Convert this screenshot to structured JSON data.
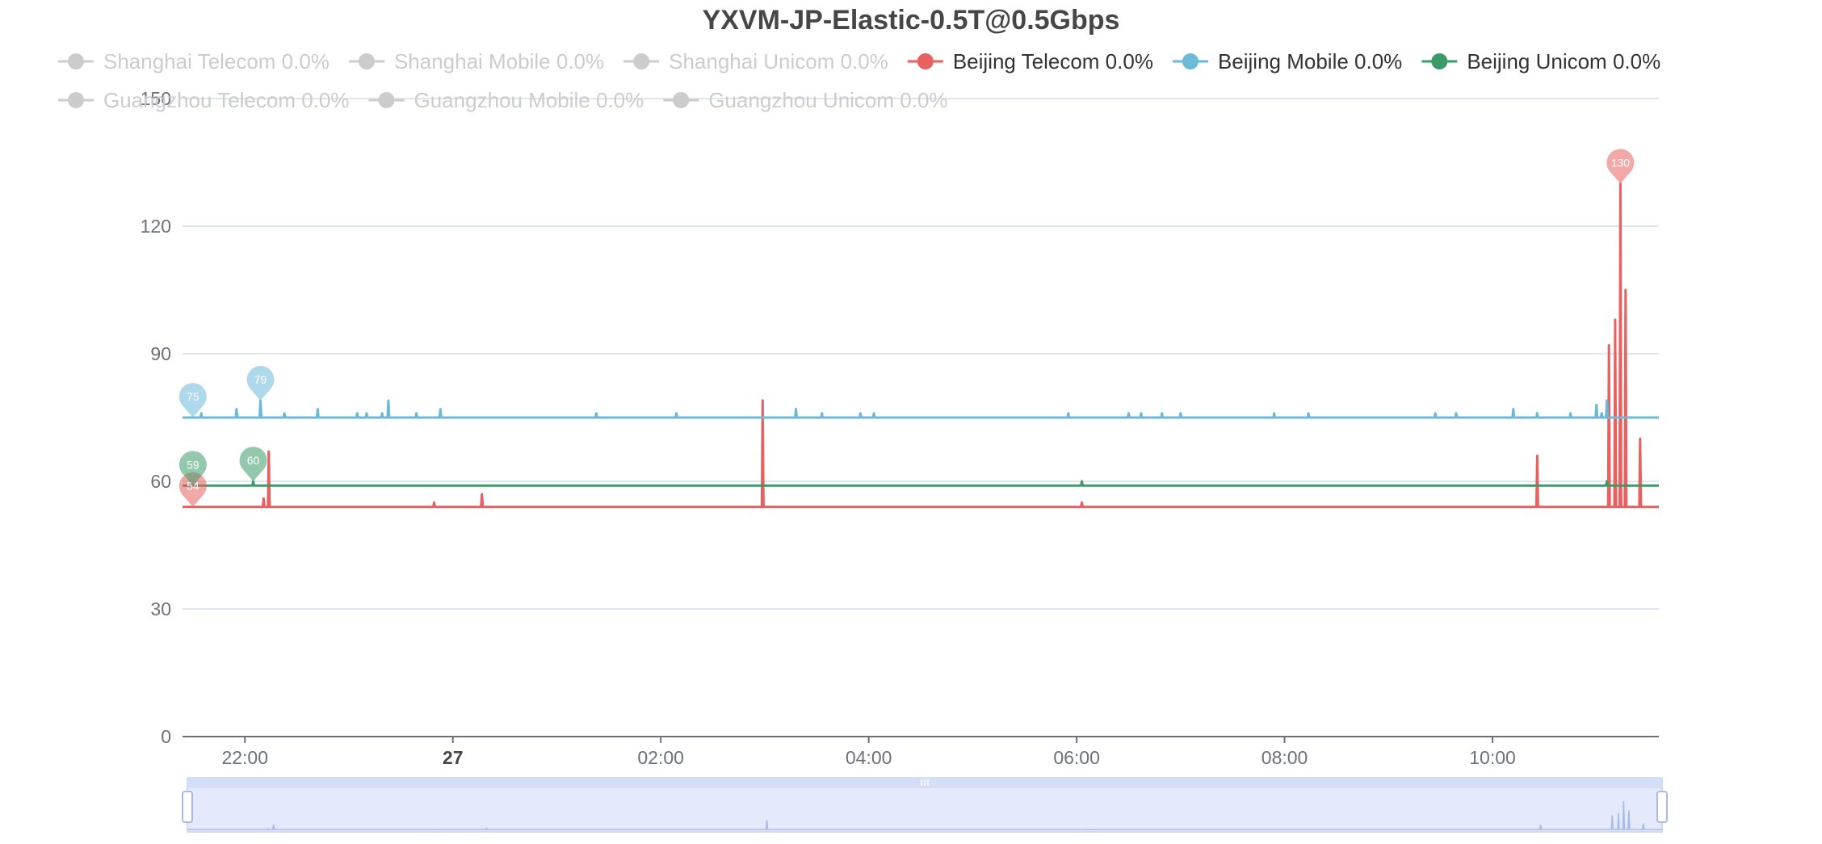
{
  "chart_data": {
    "type": "line",
    "title": "YXVM-JP-Elastic-0.5T@0.5Gbps",
    "xlabel": "",
    "ylabel": "",
    "x_unit": "hours since 21:00 on the 26th (time axis)",
    "xlim": [
      0.4,
      14.6
    ],
    "ylim": [
      0,
      150
    ],
    "y_ticks": [
      "0",
      "30",
      "60",
      "90",
      "120",
      "150"
    ],
    "x_ticks": [
      {
        "x": 1.0,
        "label": "22:00",
        "bold": false
      },
      {
        "x": 3.0,
        "label": "27",
        "bold": true
      },
      {
        "x": 5.0,
        "label": "02:00",
        "bold": false
      },
      {
        "x": 7.0,
        "label": "04:00",
        "bold": false
      },
      {
        "x": 9.0,
        "label": "06:00",
        "bold": false
      },
      {
        "x": 11.0,
        "label": "08:00",
        "bold": false
      },
      {
        "x": 13.0,
        "label": "10:00",
        "bold": false
      }
    ],
    "grid": true,
    "legend_position": "top",
    "legend": [
      {
        "label": "Shanghai Telecom 0.0%",
        "color": "#cccccc",
        "active": false
      },
      {
        "label": "Shanghai Mobile 0.0%",
        "color": "#cccccc",
        "active": false
      },
      {
        "label": "Shanghai Unicom 0.0%",
        "color": "#cccccc",
        "active": false
      },
      {
        "label": "Beijing Telecom 0.0%",
        "color": "#e8605f",
        "active": true
      },
      {
        "label": "Beijing Mobile 0.0%",
        "color": "#6bbad8",
        "active": true
      },
      {
        "label": "Beijing Unicom 0.0%",
        "color": "#3a9b68",
        "active": true
      },
      {
        "label": "Guangzhou Telecom 0.0%",
        "color": "#cccccc",
        "active": false
      },
      {
        "label": "Guangzhou Mobile 0.0%",
        "color": "#cccccc",
        "active": false
      },
      {
        "label": "Guangzhou Unicom 0.0%",
        "color": "#cccccc",
        "active": false
      }
    ],
    "series": [
      {
        "name": "Beijing Telecom 0.0%",
        "color": "#e8605f",
        "baseline": 54,
        "spikes": [
          [
            1.18,
            56
          ],
          [
            1.23,
            67
          ],
          [
            2.82,
            55
          ],
          [
            3.28,
            57
          ],
          [
            5.98,
            79
          ],
          [
            9.05,
            55
          ],
          [
            13.43,
            66
          ],
          [
            14.12,
            92
          ],
          [
            14.18,
            98
          ],
          [
            14.23,
            130
          ],
          [
            14.28,
            105
          ],
          [
            14.42,
            70
          ]
        ],
        "markers": [
          {
            "x": 0.5,
            "y": 54,
            "label": "54"
          },
          {
            "x": 14.23,
            "y": 130,
            "label": "130"
          }
        ]
      },
      {
        "name": "Beijing Mobile 0.0%",
        "color": "#6bbad8",
        "baseline": 75,
        "spikes": [
          [
            0.58,
            76
          ],
          [
            0.92,
            77
          ],
          [
            1.15,
            79
          ],
          [
            1.38,
            76
          ],
          [
            1.7,
            77
          ],
          [
            2.08,
            76
          ],
          [
            2.17,
            76
          ],
          [
            2.32,
            76
          ],
          [
            2.38,
            79
          ],
          [
            2.65,
            76
          ],
          [
            2.88,
            77
          ],
          [
            4.38,
            76
          ],
          [
            5.15,
            76
          ],
          [
            6.3,
            77
          ],
          [
            6.55,
            76
          ],
          [
            6.92,
            76
          ],
          [
            7.05,
            76
          ],
          [
            8.92,
            76
          ],
          [
            9.5,
            76
          ],
          [
            9.62,
            76
          ],
          [
            9.82,
            76
          ],
          [
            10.0,
            76
          ],
          [
            10.9,
            76
          ],
          [
            11.23,
            76
          ],
          [
            12.45,
            76
          ],
          [
            12.65,
            76
          ],
          [
            13.2,
            77
          ],
          [
            13.43,
            76
          ],
          [
            13.75,
            76
          ],
          [
            14.0,
            78
          ],
          [
            14.05,
            76
          ],
          [
            14.1,
            79
          ]
        ],
        "markers": [
          {
            "x": 0.5,
            "y": 75,
            "label": "75"
          },
          {
            "x": 1.15,
            "y": 79,
            "label": "79"
          }
        ]
      },
      {
        "name": "Beijing Unicom 0.0%",
        "color": "#3a9b68",
        "baseline": 59,
        "spikes": [
          [
            1.08,
            60
          ],
          [
            9.05,
            60
          ],
          [
            14.1,
            60
          ]
        ],
        "markers": [
          {
            "x": 0.5,
            "y": 59,
            "label": "59"
          },
          {
            "x": 1.08,
            "y": 60,
            "label": "60"
          }
        ]
      }
    ]
  }
}
